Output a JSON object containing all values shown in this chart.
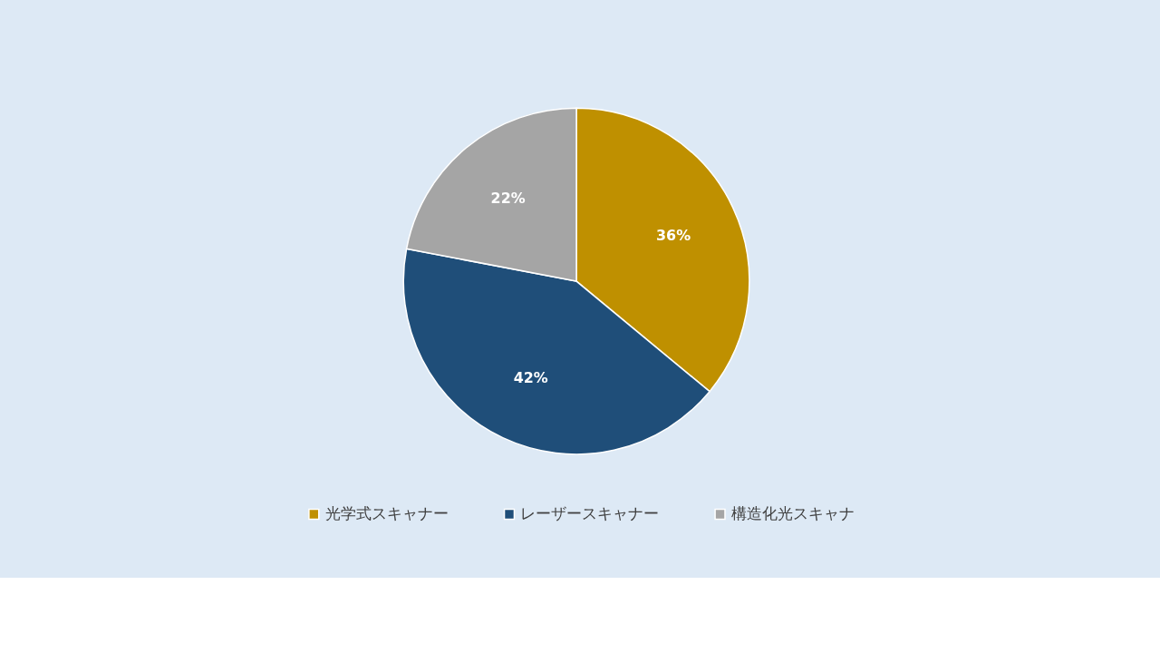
{
  "chart_data": {
    "type": "pie",
    "categories": [
      "光学式スキャナー",
      "レーザースキャナー",
      "構造化光スキャナ"
    ],
    "values": [
      36,
      42,
      22
    ],
    "colors": [
      "#bf9000",
      "#1f4e79",
      "#a5a5a5"
    ],
    "value_labels": [
      "36%",
      "42%",
      "22%"
    ],
    "legend": "bottom"
  }
}
